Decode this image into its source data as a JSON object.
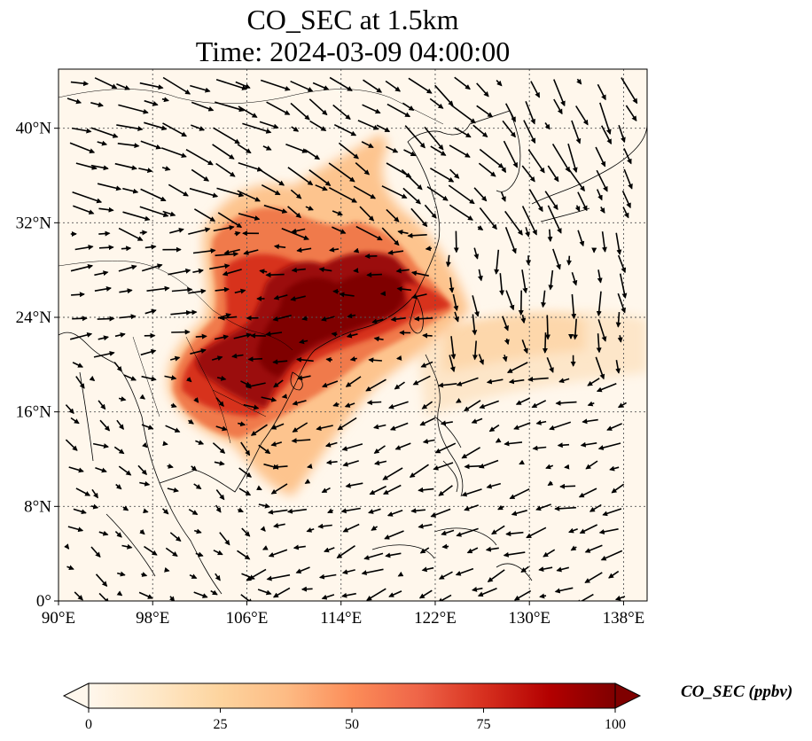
{
  "title": {
    "line1": "CO_SEC at 1.5km",
    "line2": "Time: 2024-03-09 04:00:00"
  },
  "map": {
    "lon_range": [
      90,
      140
    ],
    "lat_range": [
      0,
      40
    ],
    "gridline_style": "dotted",
    "x_ticks": [
      {
        "lon": 90,
        "label": "90°E"
      },
      {
        "lon": 98,
        "label": "98°E"
      },
      {
        "lon": 106,
        "label": "106°E"
      },
      {
        "lon": 114,
        "label": "114°E"
      },
      {
        "lon": 122,
        "label": "122°E"
      },
      {
        "lon": 130,
        "label": "130°E"
      },
      {
        "lon": 138,
        "label": "138°E"
      }
    ],
    "y_ticks": [
      {
        "lat": 0,
        "label": "0°"
      },
      {
        "lat": 8,
        "label": "8°N"
      },
      {
        "lat": 16,
        "label": "16°N"
      },
      {
        "lat": 24,
        "label": "24°N"
      },
      {
        "lat": 32,
        "label": "32°N"
      },
      {
        "lat": 40,
        "label": "40°N"
      }
    ],
    "vectors": "wind arrows (black)"
  },
  "colorbar": {
    "label": "CO_SEC (ppbv)",
    "min": 0,
    "max": 100,
    "extend": "both",
    "ticks": [
      "0",
      "25",
      "50",
      "75",
      "100"
    ],
    "colormap": "OrRd",
    "colors": [
      "#fff7ec",
      "#fee8c8",
      "#fdd49e",
      "#fdbb84",
      "#fc8d59",
      "#ef6548",
      "#d7301f",
      "#b30000",
      "#7f0000"
    ]
  }
}
